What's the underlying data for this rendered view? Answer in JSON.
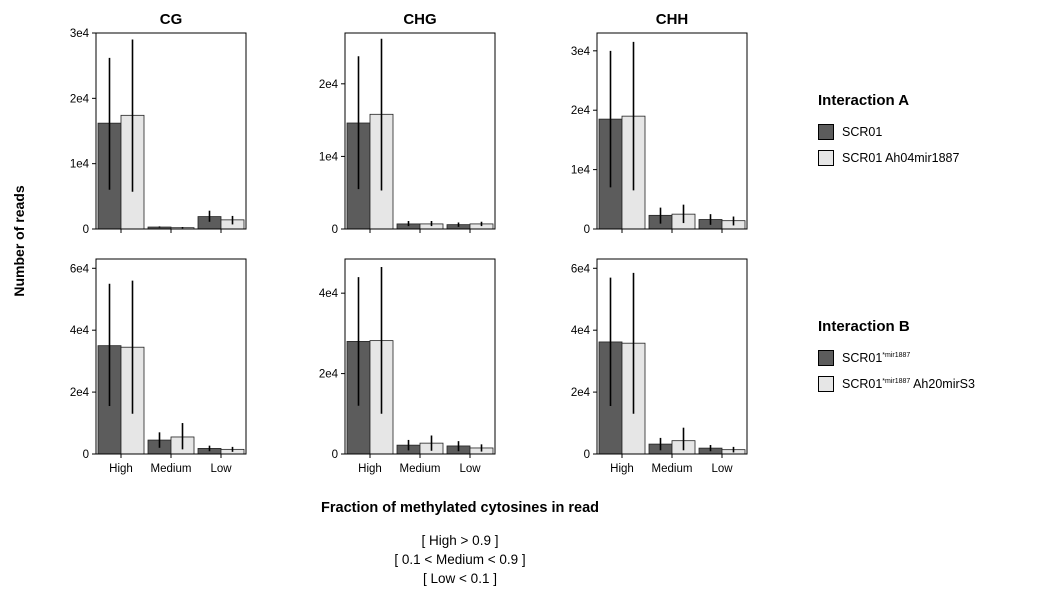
{
  "chart_data": [
    {
      "type": "bar",
      "title": "CG",
      "interaction": "A",
      "categories": [
        "High",
        "Medium",
        "Low"
      ],
      "series": [
        {
          "name": "SCR01",
          "values": [
            16200,
            300,
            1900
          ],
          "err_low": [
            6000,
            200,
            1100
          ],
          "err_high": [
            26200,
            400,
            2800
          ]
        },
        {
          "name": "SCR01 Ah04mir1887",
          "values": [
            17400,
            200,
            1400
          ],
          "err_low": [
            5700,
            100,
            700
          ],
          "err_high": [
            29000,
            300,
            2000
          ]
        }
      ],
      "ylim": [
        0,
        30000
      ],
      "yticks": [
        0,
        10000,
        20000,
        30000
      ],
      "ytick_labels": [
        "0",
        "1e4",
        "2e4",
        "3e4"
      ]
    },
    {
      "type": "bar",
      "title": "CHG",
      "interaction": "A",
      "categories": [
        "High",
        "Medium",
        "Low"
      ],
      "series": [
        {
          "name": "SCR01",
          "values": [
            14600,
            700,
            600
          ],
          "err_low": [
            5500,
            400,
            300
          ],
          "err_high": [
            23800,
            1100,
            900
          ]
        },
        {
          "name": "SCR01 Ah04mir1887",
          "values": [
            15800,
            700,
            700
          ],
          "err_low": [
            5300,
            400,
            400
          ],
          "err_high": [
            26200,
            1100,
            1000
          ]
        }
      ],
      "ylim": [
        0,
        27000
      ],
      "yticks": [
        0,
        10000,
        20000
      ],
      "ytick_labels": [
        "0",
        "1e4",
        "2e4"
      ]
    },
    {
      "type": "bar",
      "title": "CHH",
      "interaction": "A",
      "categories": [
        "High",
        "Medium",
        "Low"
      ],
      "series": [
        {
          "name": "SCR01",
          "values": [
            18500,
            2300,
            1600
          ],
          "err_low": [
            7000,
            900,
            700
          ],
          "err_high": [
            30000,
            3600,
            2500
          ]
        },
        {
          "name": "SCR01 Ah04mir1887",
          "values": [
            19000,
            2500,
            1400
          ],
          "err_low": [
            6500,
            1000,
            600
          ],
          "err_high": [
            31500,
            4100,
            2100
          ]
        }
      ],
      "ylim": [
        0,
        33000
      ],
      "yticks": [
        0,
        10000,
        20000,
        30000
      ],
      "ytick_labels": [
        "0",
        "1e4",
        "2e4",
        "3e4"
      ]
    },
    {
      "type": "bar",
      "title": "",
      "interaction": "B",
      "categories": [
        "High",
        "Medium",
        "Low"
      ],
      "series": [
        {
          "name": "SCR01 *mir1887",
          "values": [
            35000,
            4500,
            1800
          ],
          "err_low": [
            15500,
            2000,
            900
          ],
          "err_high": [
            55000,
            7000,
            2700
          ]
        },
        {
          "name": "SCR01 *mir1887 Ah20mirS3",
          "values": [
            34500,
            5500,
            1500
          ],
          "err_low": [
            13000,
            1500,
            700
          ],
          "err_high": [
            56000,
            10000,
            2300
          ]
        }
      ],
      "ylim": [
        0,
        63000
      ],
      "yticks": [
        0,
        20000,
        40000,
        60000
      ],
      "ytick_labels": [
        "0",
        "2e4",
        "4e4",
        "6e4"
      ]
    },
    {
      "type": "bar",
      "title": "",
      "interaction": "B",
      "categories": [
        "High",
        "Medium",
        "Low"
      ],
      "series": [
        {
          "name": "SCR01 *mir1887",
          "values": [
            28000,
            2200,
            2000
          ],
          "err_low": [
            12000,
            900,
            700
          ],
          "err_high": [
            44000,
            3500,
            3200
          ]
        },
        {
          "name": "SCR01 *mir1887 Ah20mirS3",
          "values": [
            28200,
            2700,
            1500
          ],
          "err_low": [
            10000,
            800,
            600
          ],
          "err_high": [
            46500,
            4600,
            2400
          ]
        }
      ],
      "ylim": [
        0,
        48500
      ],
      "yticks": [
        0,
        20000,
        40000
      ],
      "ytick_labels": [
        "0",
        "2e4",
        "4e4"
      ]
    },
    {
      "type": "bar",
      "title": "",
      "interaction": "B",
      "categories": [
        "High",
        "Medium",
        "Low"
      ],
      "series": [
        {
          "name": "SCR01 *mir1887",
          "values": [
            36200,
            3200,
            1900
          ],
          "err_low": [
            15500,
            1200,
            900
          ],
          "err_high": [
            57000,
            5200,
            2900
          ]
        },
        {
          "name": "SCR01 *mir1887 Ah20mirS3",
          "values": [
            35800,
            4300,
            1400
          ],
          "err_low": [
            13000,
            1200,
            500
          ],
          "err_high": [
            58500,
            8500,
            2300
          ]
        }
      ],
      "ylim": [
        0,
        63000
      ],
      "yticks": [
        0,
        20000,
        40000,
        60000
      ],
      "ytick_labels": [
        "0",
        "2e4",
        "4e4",
        "6e4"
      ]
    }
  ],
  "colors": {
    "series1": "#5c5c5c",
    "series2": "#e6e6e6"
  },
  "ylabel": "Number of reads",
  "xlabel": "Fraction of methylated cytosines in read",
  "definitions": [
    "[ High > 0.9 ]",
    "[ 0.1 < Medium < 0.9 ]",
    "[ Low < 0.1 ]"
  ],
  "legend": [
    {
      "title": "Interaction A",
      "items": [
        {
          "base": "SCR01",
          "sup": "",
          "suffix": ""
        },
        {
          "base": "SCR01 Ah04mir1887",
          "sup": "",
          "suffix": ""
        }
      ]
    },
    {
      "title": "Interaction B",
      "items": [
        {
          "base": "SCR01",
          "sup": "*mir1887",
          "suffix": ""
        },
        {
          "base": "SCR01",
          "sup": "*mir1887",
          "suffix": " Ah20mirS3"
        }
      ]
    }
  ]
}
